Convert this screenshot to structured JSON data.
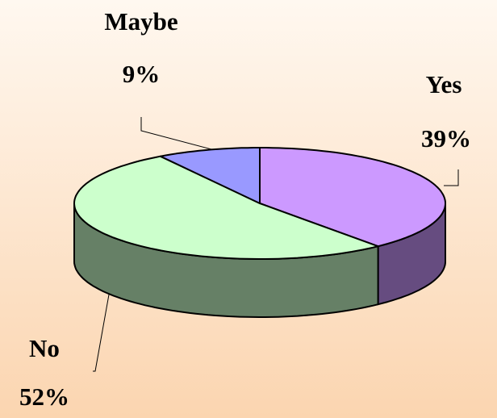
{
  "chart_data": {
    "type": "pie",
    "categories": [
      "Yes",
      "No",
      "Maybe"
    ],
    "values": [
      39,
      52,
      9
    ],
    "value_labels": [
      "39%",
      "52%",
      "9%"
    ],
    "colors": [
      "#cc99ff",
      "#ccffcc",
      "#9999ff"
    ],
    "side_colors": [
      "#664c80",
      "#668066",
      "#4c4c80"
    ]
  }
}
